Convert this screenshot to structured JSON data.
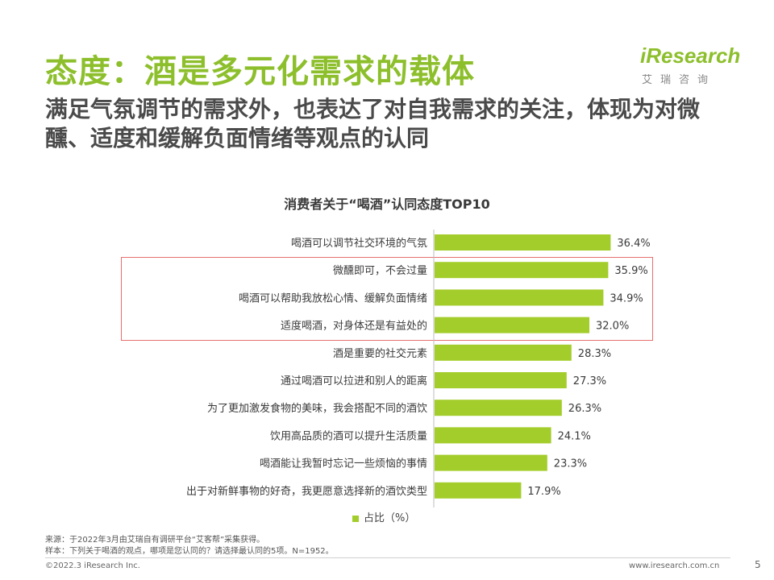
{
  "header": {
    "title": "态度：酒是多元化需求的载体",
    "subtitle": "满足气氛调节的需求外，也表达了对自我需求的关注，体现为对微醺、适度和缓解负面情绪等观点的认同"
  },
  "logo": {
    "brand": "iResearch",
    "cn": "艾瑞咨询"
  },
  "chart_data": {
    "type": "bar",
    "orientation": "horizontal",
    "title": "消费者关于“喝酒”认同态度TOP10",
    "categories": [
      "喝酒可以调节社交环境的气氛",
      "微醺即可，不会过量",
      "喝酒可以帮助我放松心情、缓解负面情绪",
      "适度喝酒，对身体还是有益处的",
      "酒是重要的社交元素",
      "通过喝酒可以拉进和别人的距离",
      "为了更加激发食物的美味，我会搭配不同的酒饮",
      "饮用高品质的酒可以提升生活质量",
      "喝酒能让我暂时忘记一些烦恼的事情",
      "出于对新鲜事物的好奇，我更愿意选择新的酒饮类型"
    ],
    "values": [
      36.4,
      35.9,
      34.9,
      32.0,
      28.3,
      27.3,
      26.3,
      24.1,
      23.3,
      17.9
    ],
    "value_labels": [
      "36.4%",
      "35.9%",
      "34.9%",
      "32.0%",
      "28.3%",
      "27.3%",
      "26.3%",
      "24.1%",
      "23.3%",
      "17.9%"
    ],
    "series": [
      {
        "name": "占比（%）"
      }
    ],
    "legend_position": "bottom",
    "bar_color": "#a3cd2a",
    "highlighted_categories": [
      1,
      2,
      3
    ],
    "highlight_color": "#e76f6f"
  },
  "footer": {
    "source": "来源：于2022年3月由艾瑞自有调研平台“艾客帮”采集获得。",
    "sample": "样本：下列关于喝酒的观点，哪项是您认同的？请选择最认同的5项。N=1952。",
    "copyright": "©2022.3 iResearch Inc.",
    "site": "www.iresearch.com.cn",
    "page": "5"
  },
  "colors": {
    "accent": "#8dbf2c",
    "bar": "#a3cd2a"
  }
}
